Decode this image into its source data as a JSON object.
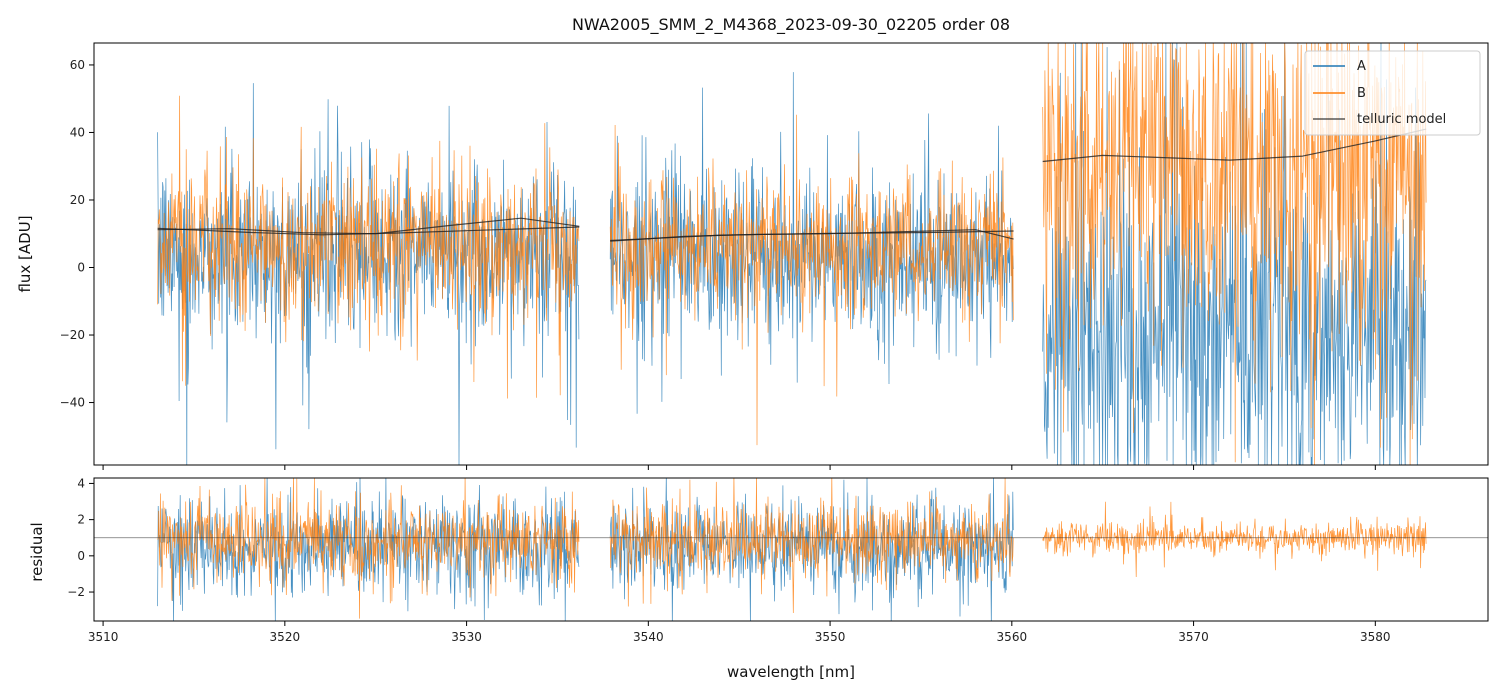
{
  "chart_data": {
    "type": "line",
    "title": "NWA2005_SMM_2_M4368_2023-09-30_02205  order 08",
    "xlabel": "wavelength [nm]",
    "xlim": [
      3509.5,
      3586.2
    ],
    "x_ticks": [
      3510,
      3520,
      3530,
      3540,
      3550,
      3560,
      3570,
      3580
    ],
    "segments": [
      [
        3513.0,
        3536.2
      ],
      [
        3537.9,
        3560.1
      ],
      [
        3561.7,
        3582.8
      ]
    ],
    "colors": {
      "A": "#1f77b4",
      "B": "#ff7f0e",
      "model": "#222222"
    },
    "top_panel": {
      "ylabel": "flux [ADU]",
      "ylim": [
        -58.5,
        66.5
      ],
      "y_ticks": [
        -40,
        -20,
        0,
        20,
        40,
        60
      ],
      "legend": {
        "location": "top-right",
        "entries": [
          "A",
          "B",
          "telluric model"
        ]
      },
      "series": [
        {
          "name": "A",
          "segment_means": [
            4,
            3,
            -18
          ],
          "segment_noise": [
            13,
            12,
            26
          ]
        },
        {
          "name": "B",
          "segment_means": [
            7,
            6,
            28
          ],
          "segment_noise": [
            11,
            10,
            25
          ]
        }
      ],
      "telluric_model": [
        {
          "segment": 0,
          "x": [
            3513.0,
            3517,
            3521,
            3525,
            3529,
            3533,
            3536.2
          ],
          "y": [
            11.2,
            11.5,
            10.3,
            10.0,
            12.4,
            14.6,
            12.2
          ]
        },
        {
          "segment": 0,
          "x": [
            3513.0,
            3518,
            3522,
            3526,
            3530,
            3536.2
          ],
          "y": [
            11.6,
            10.4,
            9.7,
            10.2,
            10.9,
            12.0
          ]
        },
        {
          "segment": 1,
          "x": [
            3537.9,
            3542,
            3546,
            3550,
            3554,
            3558,
            3560.1
          ],
          "y": [
            7.8,
            9.2,
            9.8,
            10.0,
            10.6,
            11.2,
            8.4
          ]
        },
        {
          "segment": 1,
          "x": [
            3537.9,
            3544,
            3550,
            3556,
            3560.1
          ],
          "y": [
            8.0,
            9.6,
            10.1,
            10.4,
            10.8
          ]
        },
        {
          "segment": 2,
          "x": [
            3561.7,
            3565,
            3568,
            3572,
            3576,
            3580,
            3582.8
          ],
          "y": [
            31.4,
            33.2,
            32.6,
            31.8,
            33.0,
            37.5,
            41.0
          ]
        }
      ]
    },
    "bottom_panel": {
      "ylabel": "residual",
      "ylim": [
        -3.6,
        4.3
      ],
      "y_ticks": [
        -2,
        0,
        2,
        4
      ],
      "reference_line": 1,
      "series": [
        {
          "name": "A",
          "segment_means": [
            0.5,
            0.5,
            null
          ],
          "segment_noise": [
            1.3,
            1.2,
            0
          ]
        },
        {
          "name": "B",
          "segment_means": [
            0.9,
            0.9,
            1.0
          ],
          "segment_noise": [
            1.1,
            1.0,
            0.45
          ]
        }
      ]
    }
  }
}
